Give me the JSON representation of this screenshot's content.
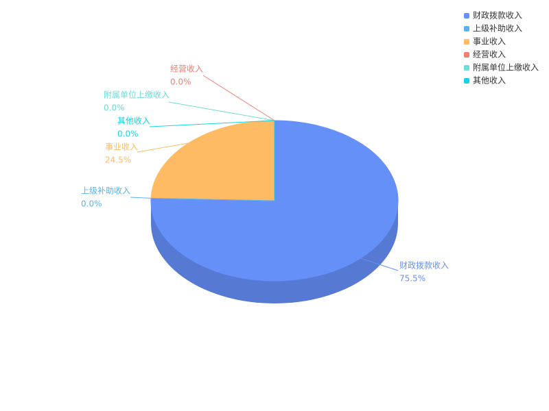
{
  "chart_data": {
    "type": "pie",
    "categories": [
      "财政拨款收入",
      "上级补助收入",
      "事业收入",
      "经营收入",
      "附属单位上缴收入",
      "其他收入"
    ],
    "values": [
      75.5,
      0.0,
      24.5,
      0.0,
      0.0,
      0.0
    ],
    "value_labels": [
      "75.5%",
      "0.0%",
      "24.5%",
      "0.0%",
      "0.0%",
      "0.0%"
    ],
    "colors": [
      "#6590f8",
      "#5ab3ef",
      "#ffbb63",
      "#ef7f74",
      "#6fdad6",
      "#16d5df"
    ],
    "legend": "top-right"
  }
}
